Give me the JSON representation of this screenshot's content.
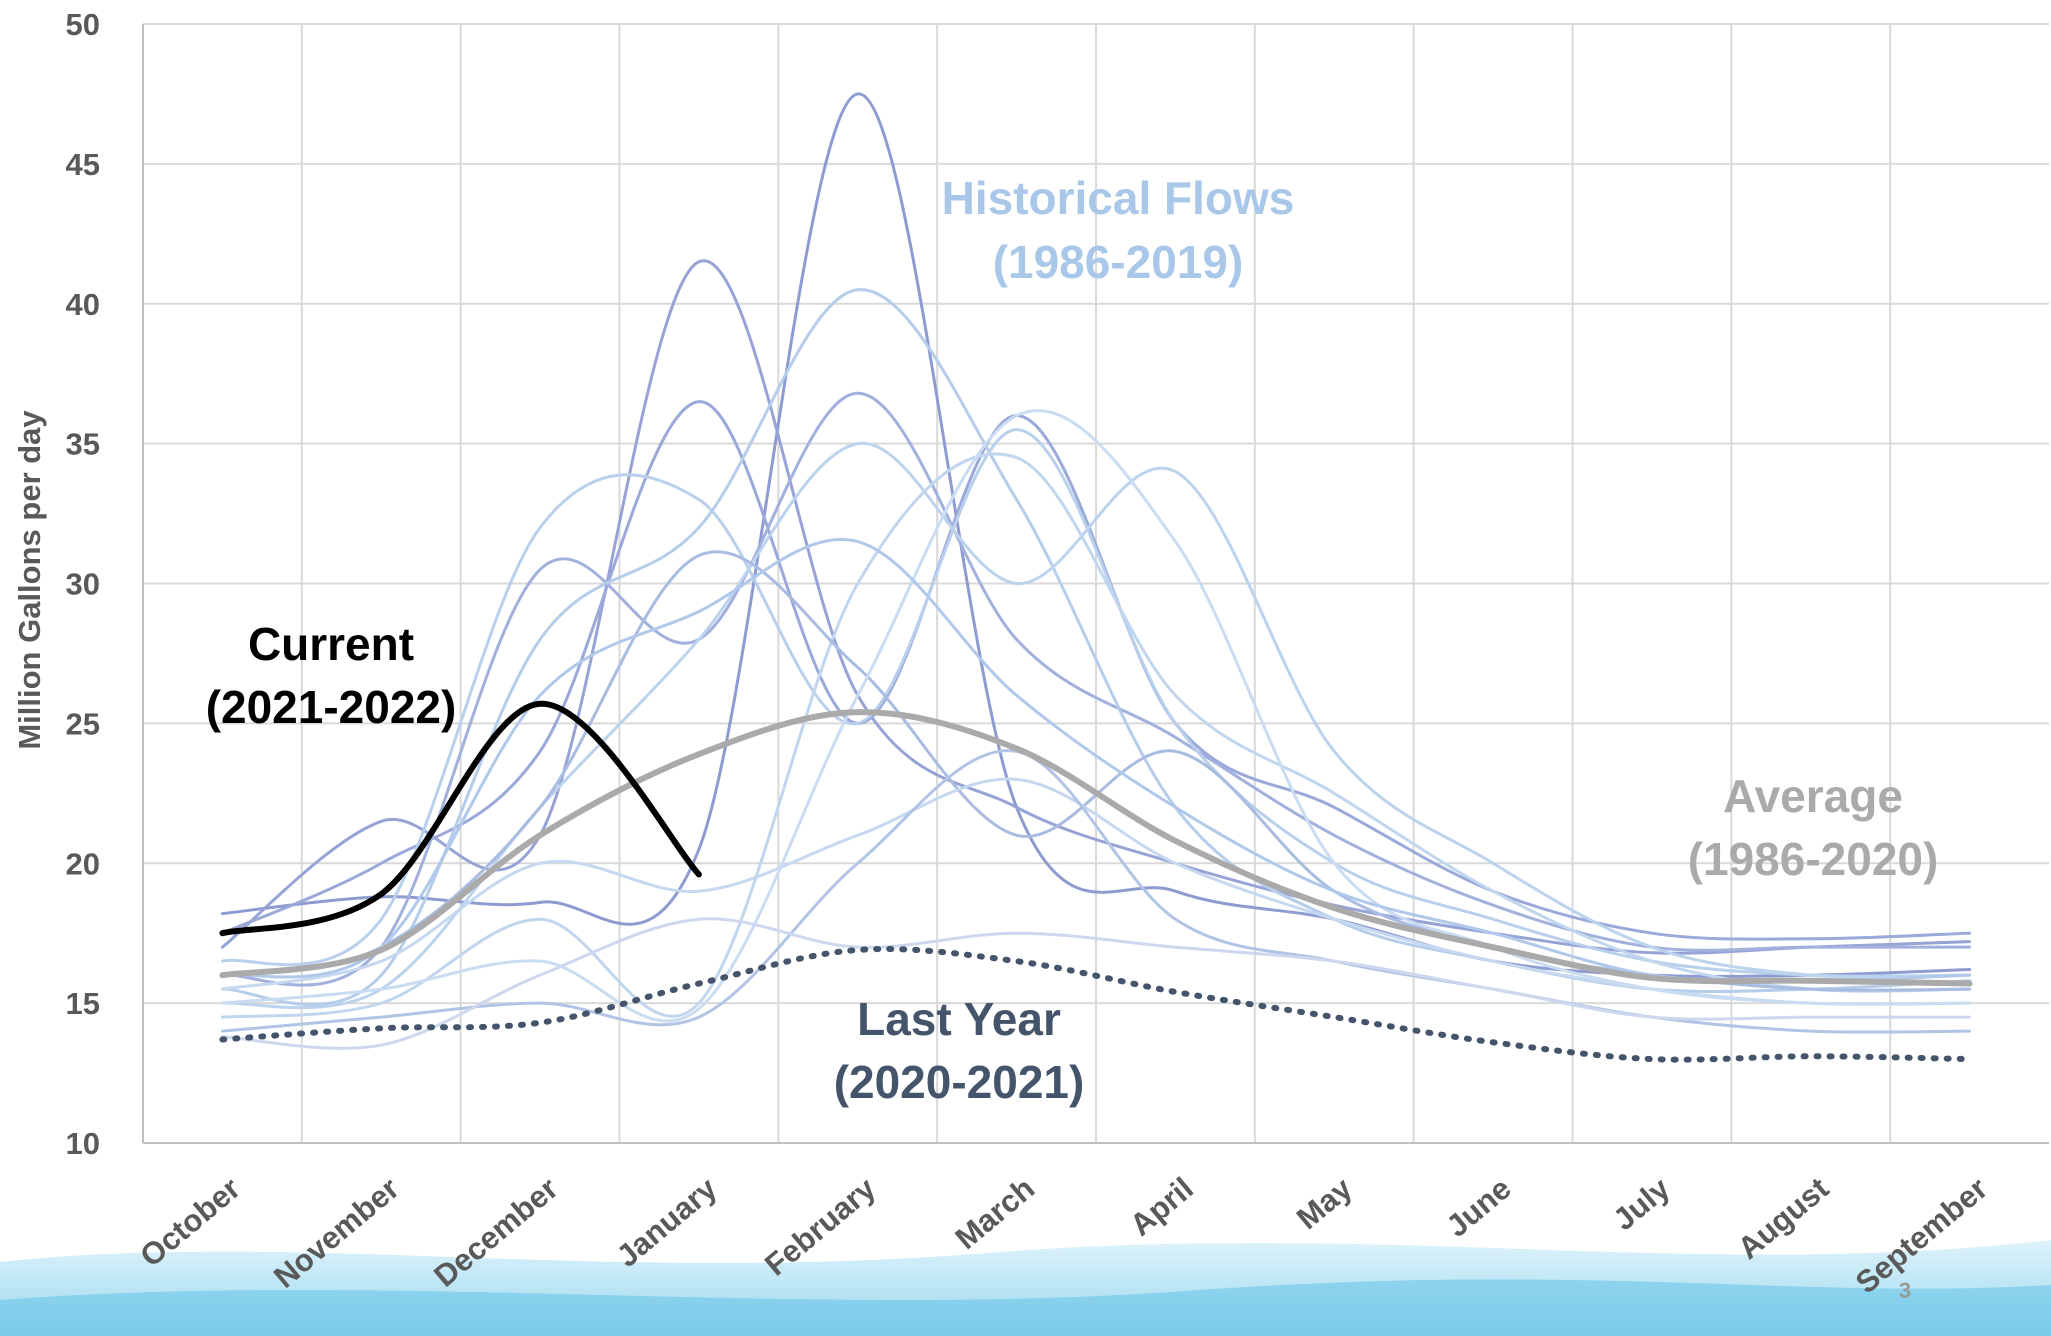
{
  "chart_data": {
    "type": "line",
    "y_label": "Million Gallons per day",
    "page_number": "3",
    "categories": [
      "October",
      "November",
      "December",
      "January",
      "February",
      "March",
      "April",
      "May",
      "June",
      "July",
      "August",
      "September"
    ],
    "ylim": [
      10,
      50
    ],
    "yticks": [
      10,
      15,
      20,
      25,
      30,
      35,
      40,
      45,
      50
    ],
    "grid": true,
    "historical": {
      "label": "Historical Flows",
      "period": "(1986-2019)",
      "color": "#a9c7e8",
      "lines": [
        {
          "color": "#8e9bd1",
          "values": [
            18.2,
            18.8,
            18.6,
            20.5,
            47.5,
            22,
            19,
            18,
            16.5,
            16,
            16,
            16.2
          ]
        },
        {
          "color": "#97a3d6",
          "values": [
            17,
            21.5,
            21,
            41.5,
            26,
            22,
            20,
            18.5,
            17.5,
            16.8,
            17,
            17.2
          ]
        },
        {
          "color": "#9aa8da",
          "values": [
            17.5,
            20,
            24,
            36.5,
            25,
            36,
            25,
            22,
            19,
            17.5,
            17.3,
            17.5
          ]
        },
        {
          "color": "#a2b0de",
          "values": [
            16,
            17,
            30.5,
            28,
            36.8,
            28,
            24.5,
            21,
            18.5,
            17,
            17,
            17
          ]
        },
        {
          "color": "#b5cdea",
          "values": [
            15.5,
            16,
            28,
            32,
            40.5,
            33,
            22,
            18,
            16.5,
            15.5,
            15.5,
            15.8
          ]
        },
        {
          "color": "#b9d0ec",
          "values": [
            16.5,
            18,
            32,
            33,
            25,
            35.5,
            25,
            20,
            18,
            16.5,
            16,
            16
          ]
        },
        {
          "color": "#bcd3ee",
          "values": [
            15,
            15.5,
            22,
            28,
            35,
            30,
            34,
            24,
            20,
            17,
            16,
            16
          ]
        },
        {
          "color": "#c0d6ee",
          "values": [
            14.5,
            15,
            18,
            15,
            30,
            34.5,
            26,
            22.5,
            19,
            16.5,
            15.5,
            15.5
          ]
        },
        {
          "color": "#a8bce2",
          "values": [
            16,
            17,
            22,
            31,
            27,
            21,
            24,
            19,
            17,
            16,
            15.5,
            15.5
          ]
        },
        {
          "color": "#c5d8f0",
          "values": [
            15.5,
            16.5,
            20,
            19,
            21,
            23,
            20,
            18,
            16.5,
            15.5,
            15,
            15
          ]
        },
        {
          "color": "#b2c4e6",
          "values": [
            14,
            14.5,
            15,
            14.5,
            20,
            24,
            18,
            16.5,
            15.5,
            14.5,
            14,
            14
          ]
        },
        {
          "color": "#cdd8ee",
          "values": [
            13.8,
            13.5,
            16,
            18,
            17,
            17.5,
            17,
            16.5,
            15.5,
            14.5,
            14.5,
            14.5
          ]
        },
        {
          "color": "#c9dcf2",
          "values": [
            15,
            15.5,
            16.5,
            14.8,
            26,
            36,
            31.5,
            20,
            17,
            15.5,
            15,
            15
          ]
        },
        {
          "color": "#b0c8ea",
          "values": [
            16,
            17,
            26,
            29,
            31.5,
            26,
            22,
            19,
            17.5,
            16,
            15.8,
            16
          ]
        }
      ]
    },
    "series": [
      {
        "name": "Average",
        "period": "(1986-2020)",
        "color": "#aaaaaa",
        "style": "solid",
        "values": [
          16.0,
          16.9,
          21.0,
          23.9,
          25.4,
          24.1,
          20.8,
          18.4,
          17.0,
          15.9,
          15.8,
          15.7
        ]
      },
      {
        "name": "Last Year",
        "period": "(2020-2021)",
        "color": "#44546a",
        "style": "dotted",
        "values": [
          13.7,
          14.1,
          14.3,
          15.7,
          16.9,
          16.5,
          15.4,
          14.5,
          13.6,
          13.0,
          13.1,
          13.0
        ]
      },
      {
        "name": "Current",
        "period": "(2021-2022)",
        "color": "#000000",
        "style": "solid",
        "values": [
          17.5,
          18.9,
          25.7,
          19.6,
          null,
          null,
          null,
          null,
          null,
          null,
          null,
          null
        ]
      }
    ]
  }
}
